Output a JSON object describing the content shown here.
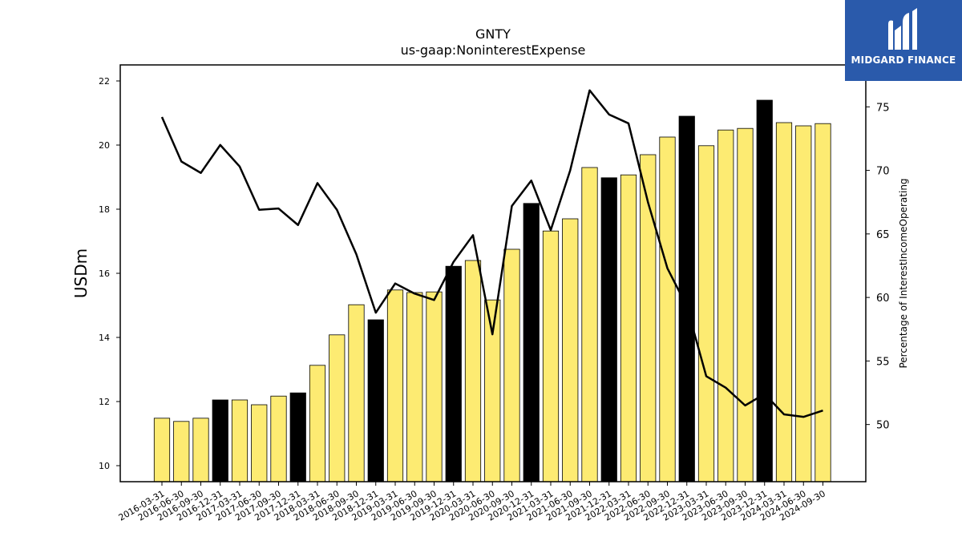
{
  "chart_data": {
    "type": "bar",
    "title": "GNTY",
    "subtitle": "us-gaap:NoninterestExpense",
    "ylabel": "USDm",
    "y2label": "Percentage of InterestIncomeOperating",
    "ylim": [
      9.5,
      22.5
    ],
    "y2lim": [
      45.5,
      78.3
    ],
    "yticks": [
      10,
      12,
      14,
      16,
      18,
      20,
      22
    ],
    "y2ticks": [
      50,
      55,
      60,
      65,
      70,
      75
    ],
    "categories": [
      "2016-03-31",
      "2016-06-30",
      "2016-09-30",
      "2016-12-31",
      "2017-03-31",
      "2017-06-30",
      "2017-09-30",
      "2017-12-31",
      "2018-03-31",
      "2018-06-30",
      "2018-09-30",
      "2018-12-31",
      "2019-03-31",
      "2019-06-30",
      "2019-09-30",
      "2019-12-31",
      "2020-03-31",
      "2020-06-30",
      "2020-09-30",
      "2020-12-31",
      "2021-03-31",
      "2021-06-30",
      "2021-09-30",
      "2021-12-31",
      "2022-03-31",
      "2022-06-30",
      "2022-09-30",
      "2022-12-31",
      "2023-03-31",
      "2023-06-30",
      "2023-09-30",
      "2023-12-31",
      "2024-03-31",
      "2024-06-30",
      "2024-09-30"
    ],
    "series": [
      {
        "kind": "bar",
        "values": [
          11.48,
          11.38,
          11.48,
          12.05,
          12.05,
          11.9,
          12.17,
          12.27,
          13.13,
          14.08,
          15.02,
          14.55,
          15.48,
          15.4,
          15.42,
          16.22,
          16.4,
          15.17,
          16.75,
          18.18,
          17.32,
          17.7,
          19.3,
          18.98,
          19.07,
          19.7,
          20.25,
          20.9,
          19.98,
          20.47,
          20.52,
          21.4,
          20.7,
          20.6,
          20.67
        ],
        "highlight": [
          false,
          false,
          false,
          true,
          false,
          false,
          false,
          true,
          false,
          false,
          false,
          true,
          false,
          false,
          false,
          true,
          false,
          false,
          false,
          true,
          false,
          false,
          false,
          true,
          false,
          false,
          false,
          true,
          false,
          false,
          false,
          true,
          false,
          false,
          false
        ],
        "color": "#fdeb72",
        "highlight_color": "#000000"
      },
      {
        "kind": "line",
        "axis": "right",
        "values": [
          74.2,
          70.7,
          69.8,
          72.0,
          70.3,
          66.9,
          67.0,
          65.7,
          69.0,
          66.9,
          63.4,
          58.8,
          61.1,
          60.3,
          59.8,
          62.8,
          64.9,
          57.1,
          67.2,
          69.2,
          65.3,
          70.0,
          76.3,
          74.4,
          73.7,
          67.5,
          62.3,
          59.3,
          53.8,
          52.9,
          51.5,
          52.4,
          50.8,
          50.6,
          51.1
        ],
        "color": "#000000"
      }
    ]
  },
  "logo": {
    "text": "MIDGARD FINANCE",
    "color": "#2a5aab"
  }
}
